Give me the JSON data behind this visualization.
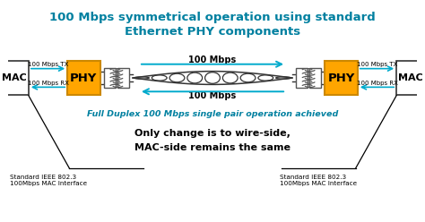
{
  "title_line1": "100 Mbps symmetrical operation using standard",
  "title_line2": "Ethernet PHY components",
  "title_color": "#0080a0",
  "title_fontsize": 9.5,
  "bg_color": "#ffffff",
  "phy_color": "#FFA500",
  "phy_edge_color": "#cc8800",
  "arrow_color": "#00AACC",
  "fullduplex_text": "Full Duplex 100 Mbps single pair operation achieved",
  "fullduplex_color": "#0080a0",
  "body_text_line1": "Only change is to wire-side,",
  "body_text_line2": "MAC-side remains the same",
  "body_text_color": "#000000",
  "bottom_left_text": "Standard IEEE 802.3\n100Mbps MAC Interface",
  "bottom_right_text": "Standard IEEE 802.3\n100Mbps MAC Interface",
  "bottom_text_color": "#000000",
  "label_tx_left": "100 Mbps TX",
  "label_rx_left": "100 Mbps RX",
  "label_tx_right": "100 Mbps TX",
  "label_rx_right": "100 Mbps RX",
  "label_top_cable": "100 Mbps",
  "label_bot_cable": "100 Mbps",
  "label_color": "#000000",
  "mac_label": "MAC",
  "phy_label": "PHY",
  "phy_label_color": "#000000",
  "mac_label_color": "#000000",
  "cable_color": "#333333",
  "transformer_color": "#555555"
}
